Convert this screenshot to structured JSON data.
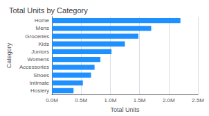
{
  "chart_data": {
    "type": "bar",
    "orientation": "horizontal",
    "title": "Total Units by Category",
    "xlabel": "Total Units",
    "ylabel": "Category",
    "categories": [
      "Hosiery",
      "Intimate",
      "Shoes",
      "Accessories",
      "Womens",
      "Juniors",
      "Kids",
      "Groceries",
      "Mens",
      "Home"
    ],
    "values": [
      370000,
      530000,
      670000,
      730000,
      830000,
      1020000,
      1250000,
      1480000,
      1700000,
      2200000
    ],
    "color": "#1E90FF",
    "xlim": [
      0,
      2500000
    ],
    "xticks": [
      {
        "value": 0,
        "label": "0.0M"
      },
      {
        "value": 500000,
        "label": "0.5M"
      },
      {
        "value": 1000000,
        "label": "1.0M"
      },
      {
        "value": 1500000,
        "label": "1.5M"
      },
      {
        "value": 2000000,
        "label": "2.0M"
      },
      {
        "value": 2500000,
        "label": "2.5M"
      }
    ],
    "grid": true
  }
}
